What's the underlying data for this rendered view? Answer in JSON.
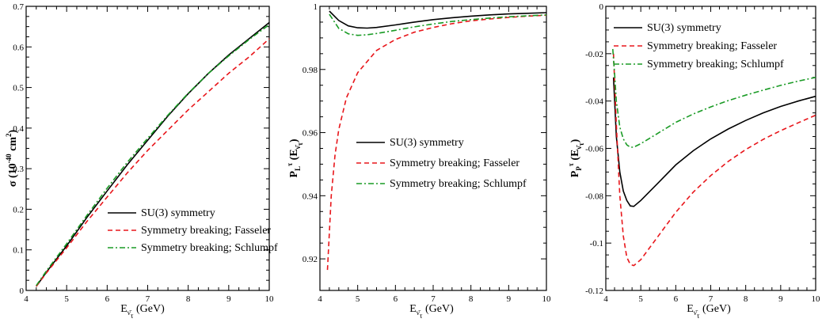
{
  "styles": {
    "colors": [
      "#000000",
      "#e8161b",
      "#1a9b25"
    ],
    "dashes": [
      "",
      "6,4",
      "7,3,2,3"
    ]
  },
  "chart_data": [
    {
      "type": "line",
      "xlim": [
        4,
        10
      ],
      "ylim": [
        0,
        0.7
      ],
      "xticks": [
        4,
        5,
        6,
        7,
        8,
        9,
        10
      ],
      "xtick_labels": [
        "4",
        "5",
        "6",
        "7",
        "8",
        "9",
        "10"
      ],
      "yticks": [
        0,
        0.1,
        0.2,
        0.3,
        0.4,
        0.5,
        0.6,
        0.7
      ],
      "ytick_labels": [
        "0",
        "0.1",
        "0.2",
        "0.3",
        "0.4",
        "0.5",
        "0.6",
        "0.7"
      ],
      "ylabel": {
        "main": "σ (10",
        "sup1": "-40",
        "mid": " cm",
        "sup2": "2",
        "end": ")"
      },
      "xlabel": {
        "main": "E",
        "sub": "ν̄",
        "subsub": "τ",
        "end": " (GeV)"
      },
      "legend": [
        "SU(3) symmetry",
        "Symmetry breaking; Fasseler",
        "Symmetry breaking; Schlumpf"
      ],
      "series": [
        {
          "name": "SU(3) symmetry",
          "x": [
            4.25,
            4.5,
            5,
            5.5,
            6,
            6.5,
            7,
            7.5,
            8,
            8.5,
            9,
            9.5,
            10
          ],
          "y": [
            0.01,
            0.045,
            0.11,
            0.18,
            0.245,
            0.31,
            0.37,
            0.43,
            0.485,
            0.535,
            0.58,
            0.62,
            0.66
          ]
        },
        {
          "name": "Symmetry breaking; Fasseler",
          "x": [
            4.25,
            4.5,
            5,
            5.5,
            6,
            6.5,
            7,
            7.5,
            8,
            8.5,
            9,
            9.5,
            10
          ],
          "y": [
            0.01,
            0.043,
            0.105,
            0.17,
            0.23,
            0.29,
            0.345,
            0.395,
            0.445,
            0.49,
            0.535,
            0.575,
            0.62
          ]
        },
        {
          "name": "Symmetry breaking; Schlumpf",
          "x": [
            4.25,
            4.5,
            5,
            5.5,
            6,
            6.5,
            7,
            7.5,
            8,
            8.5,
            9,
            9.5,
            10
          ],
          "y": [
            0.012,
            0.048,
            0.115,
            0.185,
            0.252,
            0.316,
            0.375,
            0.432,
            0.486,
            0.535,
            0.578,
            0.618,
            0.655
          ]
        }
      ]
    },
    {
      "type": "line",
      "xlim": [
        4,
        10
      ],
      "ylim": [
        0.91,
        1.0
      ],
      "xticks": [
        4,
        5,
        6,
        7,
        8,
        9,
        10
      ],
      "xtick_labels": [
        "4",
        "5",
        "6",
        "7",
        "8",
        "9",
        "10"
      ],
      "yticks": [
        0.92,
        0.94,
        0.96,
        0.98,
        1.0
      ],
      "ytick_labels": [
        "0.92",
        "0.94",
        "0.96",
        "0.98",
        "1"
      ],
      "ylabel": {
        "main": "P",
        "sub": "L",
        "sup": "τ",
        "end": " (E",
        "sub2": "ν̄",
        "subsub": "τ",
        "close": ")"
      },
      "xlabel": {
        "main": "E",
        "sub": "ν̄",
        "subsub": "τ",
        "end": " (GeV)"
      },
      "legend": [
        "SU(3) symmetry",
        "Symmetry breaking; Fasseler",
        "Symmetry breaking; Schlumpf"
      ],
      "series": [
        {
          "name": "SU(3) symmetry",
          "x": [
            4.25,
            4.5,
            4.75,
            5,
            5.25,
            5.5,
            6,
            6.5,
            7,
            7.5,
            8,
            8.5,
            9,
            9.5,
            10
          ],
          "y": [
            0.9985,
            0.9955,
            0.9938,
            0.9932,
            0.9931,
            0.9933,
            0.9941,
            0.995,
            0.9958,
            0.9964,
            0.9969,
            0.9973,
            0.9976,
            0.9978,
            0.998
          ]
        },
        {
          "name": "Symmetry breaking; Fasseler",
          "x": [
            4.2,
            4.3,
            4.4,
            4.5,
            4.7,
            5,
            5.5,
            6,
            6.5,
            7,
            7.5,
            8,
            8.5,
            9,
            9.5,
            10
          ],
          "y": [
            0.9165,
            0.94,
            0.953,
            0.961,
            0.971,
            0.979,
            0.986,
            0.9895,
            0.9918,
            0.9933,
            0.9945,
            0.9954,
            0.996,
            0.9965,
            0.9969,
            0.9972
          ]
        },
        {
          "name": "Symmetry breaking; Schlumpf",
          "x": [
            4.25,
            4.5,
            4.75,
            5,
            5.25,
            5.5,
            6,
            6.5,
            7,
            7.5,
            8,
            8.5,
            9,
            9.5,
            10
          ],
          "y": [
            0.9975,
            0.993,
            0.9913,
            0.9908,
            0.991,
            0.9914,
            0.9924,
            0.9935,
            0.9944,
            0.9952,
            0.9958,
            0.9963,
            0.9967,
            0.997,
            0.9973
          ]
        }
      ]
    },
    {
      "type": "line",
      "xlim": [
        4,
        10
      ],
      "ylim": [
        -0.12,
        0
      ],
      "xticks": [
        4,
        5,
        6,
        7,
        8,
        9,
        10
      ],
      "xtick_labels": [
        "4",
        "5",
        "6",
        "7",
        "8",
        "9",
        "10"
      ],
      "yticks": [
        -0.12,
        -0.1,
        -0.08,
        -0.06,
        -0.04,
        -0.02,
        0
      ],
      "ytick_labels": [
        "-0.12",
        "-0.1",
        "-0.08",
        "-0.06",
        "-0.04",
        "-0.02",
        "0"
      ],
      "ylabel": {
        "main": "P",
        "sub": "P",
        "sup": "τ",
        "end": " (E",
        "sub2": "ν̄",
        "subsub": "τ",
        "close": ")"
      },
      "xlabel": {
        "main": "E",
        "sub": "ν̄",
        "subsub": "τ",
        "end": " (GeV)"
      },
      "legend": [
        "SU(3) symmetry",
        "Symmetry breaking; Fasseler",
        "Symmetry breaking; Schlumpf"
      ],
      "series": [
        {
          "name": "SU(3) symmetry",
          "x": [
            4.22,
            4.3,
            4.4,
            4.5,
            4.6,
            4.7,
            4.8,
            5,
            5.5,
            6,
            6.5,
            7,
            7.5,
            8,
            8.5,
            9,
            9.5,
            10
          ],
          "y": [
            -0.03,
            -0.055,
            -0.07,
            -0.078,
            -0.082,
            -0.0843,
            -0.0845,
            -0.082,
            -0.0745,
            -0.067,
            -0.061,
            -0.056,
            -0.0518,
            -0.0482,
            -0.045,
            -0.0423,
            -0.04,
            -0.038
          ]
        },
        {
          "name": "Symmetry breaking; Fasseler",
          "x": [
            4.22,
            4.3,
            4.4,
            4.5,
            4.6,
            4.7,
            4.8,
            5,
            5.5,
            6,
            6.5,
            7,
            7.5,
            8,
            8.5,
            9,
            9.5,
            10
          ],
          "y": [
            -0.02,
            -0.05,
            -0.08,
            -0.097,
            -0.106,
            -0.109,
            -0.1095,
            -0.107,
            -0.097,
            -0.087,
            -0.0785,
            -0.0715,
            -0.0655,
            -0.0605,
            -0.0562,
            -0.0525,
            -0.0492,
            -0.046
          ]
        },
        {
          "name": "Symmetry breaking; Schlumpf",
          "x": [
            4.2,
            4.25,
            4.3,
            4.4,
            4.5,
            4.6,
            4.7,
            4.8,
            5,
            5.5,
            6,
            6.5,
            7,
            7.5,
            8,
            8.5,
            9,
            9.5,
            10
          ],
          "y": [
            -0.018,
            -0.028,
            -0.04,
            -0.051,
            -0.056,
            -0.0585,
            -0.0595,
            -0.0595,
            -0.058,
            -0.0535,
            -0.049,
            -0.0455,
            -0.0425,
            -0.0398,
            -0.0375,
            -0.0354,
            -0.0334,
            -0.0316,
            -0.03
          ]
        }
      ]
    }
  ]
}
